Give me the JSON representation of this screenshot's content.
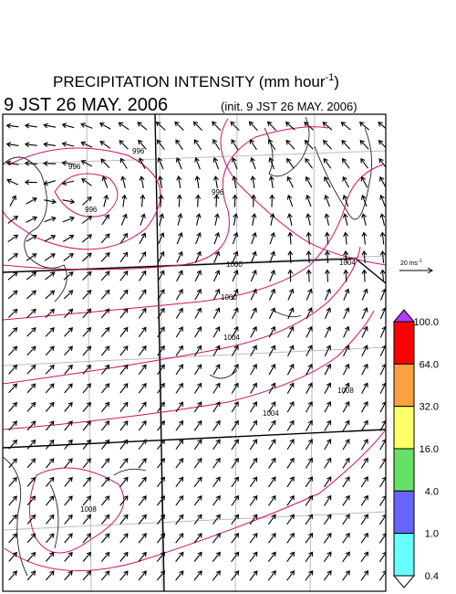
{
  "header": {
    "title": {
      "text": "PRECIPITATION INTENSITY (mm hour",
      "superscript": "-1",
      "close": ")"
    },
    "valid_time": "9 JST 26 MAY. 2006",
    "init_time": "(init. 9 JST 26 MAY. 2006)"
  },
  "vector_legend": {
    "text": "20 ms",
    "superscript": "-1"
  },
  "colorbar": {
    "labels": [
      "100.0",
      "64.0",
      "32.0",
      "16.0",
      "4.0",
      "1.0",
      "0.4"
    ],
    "colors": [
      "#b43cff",
      "#ff0000",
      "#ffa040",
      "#ffff66",
      "#66e066",
      "#6666ff",
      "#66ffff",
      "#ffffff"
    ]
  },
  "contour_labels": [
    "996",
    "996",
    "996",
    "996",
    "1000",
    "1000",
    "1004",
    "1004",
    "1004",
    "1008",
    "1008"
  ]
}
